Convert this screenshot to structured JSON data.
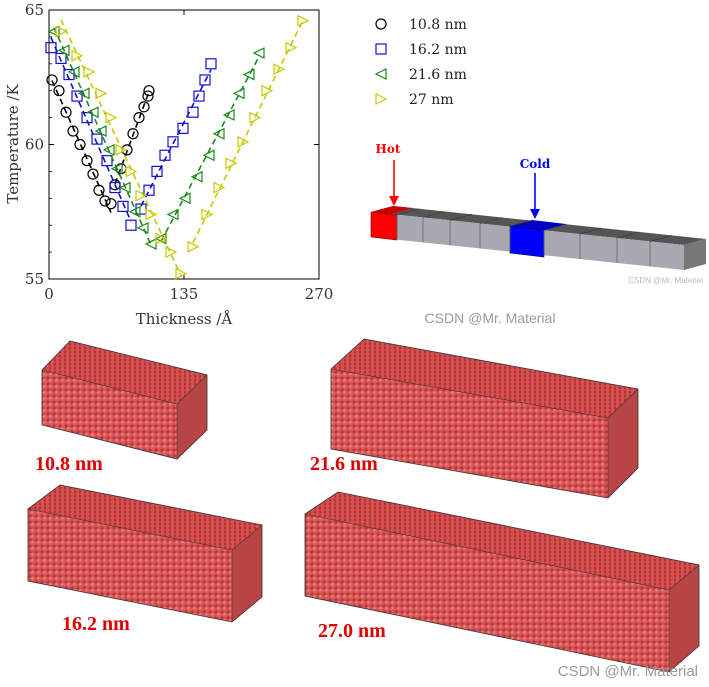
{
  "chart_data": {
    "type": "scatter",
    "xlabel": "Thickness /Å",
    "ylabel": "Temperature /K",
    "xlim": [
      0,
      270
    ],
    "ylim": [
      55,
      65
    ],
    "xticks": [
      "0",
      "135",
      "270"
    ],
    "yticks": [
      "55",
      "60",
      "65"
    ],
    "legend_position": "right-top",
    "series": [
      {
        "name": "10.8 nm",
        "marker": "circle",
        "color": "#000000",
        "points": [
          [
            3,
            62.4
          ],
          [
            10,
            62.0
          ],
          [
            17,
            61.2
          ],
          [
            24,
            60.5
          ],
          [
            31,
            60.0
          ],
          [
            38,
            59.4
          ],
          [
            44,
            58.9
          ],
          [
            50,
            58.3
          ],
          [
            56,
            57.9
          ],
          [
            62,
            57.8
          ],
          [
            66,
            58.5
          ],
          [
            72,
            59.1
          ],
          [
            78,
            59.8
          ],
          [
            84,
            60.4
          ],
          [
            90,
            61.0
          ],
          [
            95,
            61.4
          ],
          [
            99,
            61.8
          ],
          [
            100,
            62.0
          ]
        ]
      },
      {
        "name": "16.2 nm",
        "marker": "square",
        "color": "#1010d0",
        "points": [
          [
            2,
            63.6
          ],
          [
            12,
            63.2
          ],
          [
            20,
            62.6
          ],
          [
            28,
            61.8
          ],
          [
            38,
            61.0
          ],
          [
            48,
            60.2
          ],
          [
            58,
            59.4
          ],
          [
            66,
            58.4
          ],
          [
            74,
            57.7
          ],
          [
            82,
            57.0
          ],
          [
            92,
            57.6
          ],
          [
            100,
            58.3
          ],
          [
            108,
            59.0
          ],
          [
            116,
            59.6
          ],
          [
            124,
            60.1
          ],
          [
            134,
            60.6
          ],
          [
            144,
            61.2
          ],
          [
            150,
            61.8
          ],
          [
            156,
            62.4
          ],
          [
            162,
            63.0
          ]
        ]
      },
      {
        "name": "21.6 nm",
        "marker": "triangle-left",
        "color": "#1a8a1a",
        "points": [
          [
            5,
            64.2
          ],
          [
            15,
            63.5
          ],
          [
            25,
            62.7
          ],
          [
            35,
            61.9
          ],
          [
            44,
            61.2
          ],
          [
            52,
            60.5
          ],
          [
            60,
            59.8
          ],
          [
            68,
            59.1
          ],
          [
            76,
            58.4
          ],
          [
            86,
            57.5
          ],
          [
            94,
            56.9
          ],
          [
            102,
            56.3
          ],
          [
            112,
            56.5
          ],
          [
            124,
            57.4
          ],
          [
            136,
            58.0
          ],
          [
            148,
            58.8
          ],
          [
            160,
            59.6
          ],
          [
            170,
            60.4
          ],
          [
            180,
            61.1
          ],
          [
            190,
            61.9
          ],
          [
            200,
            62.6
          ],
          [
            210,
            63.4
          ]
        ]
      },
      {
        "name": "27 nm",
        "marker": "triangle-right",
        "color": "#c8c800",
        "points": [
          [
            12,
            64.2
          ],
          [
            28,
            63.3
          ],
          [
            40,
            62.7
          ],
          [
            52,
            61.9
          ],
          [
            62,
            61.0
          ],
          [
            72,
            59.8
          ],
          [
            82,
            59.0
          ],
          [
            92,
            58.1
          ],
          [
            102,
            57.4
          ],
          [
            112,
            56.5
          ],
          [
            122,
            56.0
          ],
          [
            132,
            55.2
          ],
          [
            144,
            56.2
          ],
          [
            158,
            57.4
          ],
          [
            170,
            58.4
          ],
          [
            182,
            59.3
          ],
          [
            194,
            60.1
          ],
          [
            206,
            61.0
          ],
          [
            218,
            62.0
          ],
          [
            230,
            62.8
          ],
          [
            242,
            63.6
          ],
          [
            254,
            64.6
          ]
        ]
      }
    ]
  },
  "diagram": {
    "hot_label": "Hot",
    "cold_label": "Cold",
    "hot_color": "#ff0000",
    "cold_color": "#0000ff"
  },
  "structures": [
    {
      "label": "10.8 nm"
    },
    {
      "label": "21.6 nm"
    },
    {
      "label": "16.2 nm"
    },
    {
      "label": "27.0 nm"
    }
  ],
  "watermarks": {
    "middle": "CSDN @Mr. Material",
    "bottom": "CSDN @Mr. Material",
    "small": "CSDN @Mr. Material"
  }
}
